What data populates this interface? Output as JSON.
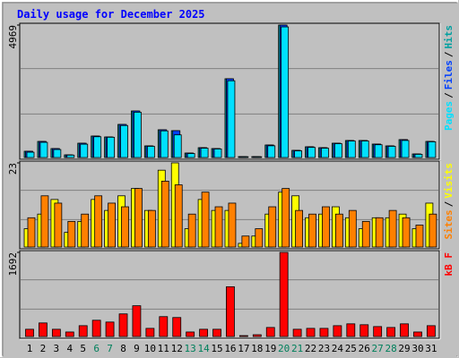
{
  "chart_data": [
    {
      "type": "bar",
      "title": "Daily usage for December 2025",
      "ylim": [
        0,
        4969
      ],
      "yticks": [
        4969
      ],
      "legend_separator": "/",
      "series": [
        {
          "name": "Pages",
          "color": "#00e0ff",
          "values": [
            200,
            570,
            300,
            90,
            500,
            780,
            760,
            1200,
            1700,
            420,
            1000,
            850,
            150,
            350,
            320,
            2880,
            30,
            30,
            440,
            4900,
            250,
            380,
            350,
            520,
            620,
            620,
            480,
            420,
            640,
            120,
            590
          ]
        },
        {
          "name": "Files",
          "color": "#0040ff",
          "values": [
            235,
            604,
            336,
            100,
            537,
            806,
            772,
            1242,
            1746,
            436,
            1041,
            1007,
            168,
            369,
            336,
            2955,
            34,
            34,
            470,
            4969,
            269,
            403,
            369,
            537,
            638,
            638,
            504,
            436,
            672,
            134,
            604
          ]
        },
        {
          "name": "Hits",
          "color": "#00a0a0",
          "values": [
            235,
            604,
            336,
            100,
            537,
            806,
            772,
            1242,
            1746,
            436,
            1041,
            1007,
            168,
            369,
            336,
            2955,
            34,
            34,
            470,
            4969,
            269,
            403,
            369,
            537,
            638,
            638,
            504,
            436,
            672,
            134,
            604
          ]
        }
      ]
    },
    {
      "type": "bar",
      "ylim": [
        0,
        23
      ],
      "yticks": [
        23
      ],
      "legend_separator": "/",
      "series": [
        {
          "name": "Sites",
          "color": "#ff8000",
          "values": [
            8,
            14,
            12,
            7,
            9,
            14,
            12,
            11,
            16,
            10,
            18,
            17,
            9,
            15,
            11,
            12,
            3,
            5,
            11,
            16,
            10,
            9,
            11,
            9,
            10,
            7,
            8,
            10,
            8,
            6,
            9
          ]
        },
        {
          "name": "Visits",
          "color": "#ffff00",
          "values": [
            5,
            9,
            13,
            4,
            7,
            13,
            10,
            14,
            16,
            10,
            21,
            23,
            5,
            13,
            10,
            10,
            1,
            3,
            9,
            15,
            14,
            8,
            9,
            11,
            8,
            5,
            8,
            8,
            9,
            5,
            12
          ]
        }
      ]
    },
    {
      "type": "bar",
      "ylim": [
        0,
        1692
      ],
      "yticks": [
        1692
      ],
      "categories": [
        "1",
        "2",
        "3",
        "4",
        "5",
        "6",
        "7",
        "8",
        "9",
        "10",
        "11",
        "12",
        "13",
        "14",
        "15",
        "16",
        "17",
        "18",
        "19",
        "20",
        "21",
        "22",
        "23",
        "24",
        "25",
        "26",
        "27",
        "28",
        "29",
        "30",
        "31"
      ],
      "category_colors": [
        "#000000",
        "#000000",
        "#000000",
        "#000000",
        "#000000",
        "#00805c",
        "#00805c",
        "#000000",
        "#000000",
        "#000000",
        "#000000",
        "#000000",
        "#00805c",
        "#00805c",
        "#000000",
        "#000000",
        "#000000",
        "#000000",
        "#000000",
        "#00805c",
        "#00805c",
        "#000000",
        "#000000",
        "#000000",
        "#000000",
        "#000000",
        "#00805c",
        "#00805c",
        "#000000",
        "#000000",
        "#000000"
      ],
      "series": [
        {
          "name": "kB F",
          "color": "#ff0000",
          "values": [
            146,
            273,
            146,
            91,
            218,
            327,
            291,
            455,
            619,
            164,
            400,
            382,
            91,
            146,
            146,
            1001,
            18,
            36,
            182,
            1692,
            146,
            164,
            164,
            218,
            255,
            237,
            200,
            182,
            255,
            91,
            218
          ]
        }
      ]
    }
  ]
}
